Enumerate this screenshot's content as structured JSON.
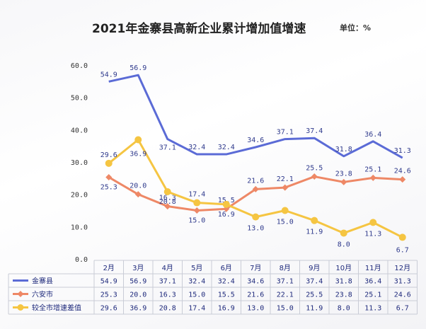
{
  "chart_data": {
    "type": "line",
    "title": "2021年金寨县高新企业累计增加值增速",
    "unit": "单位：%",
    "categories": [
      "2月",
      "3月",
      "4月",
      "5月",
      "6月",
      "7月",
      "8月",
      "9月",
      "10月",
      "11月",
      "12月"
    ],
    "y_ticks": [
      "0.0",
      "10.0",
      "20.0",
      "30.0",
      "40.0",
      "50.0",
      "60.0"
    ],
    "ylim": [
      0,
      60
    ],
    "grid": false,
    "legend": "data-table",
    "series": [
      {
        "name": "金寨县",
        "color": "#5b6bd6",
        "marker": "none",
        "values": [
          54.9,
          56.9,
          37.1,
          32.4,
          32.4,
          34.6,
          37.1,
          37.4,
          31.8,
          36.4,
          31.3
        ]
      },
      {
        "name": "六安市",
        "color": "#ee8866",
        "marker": "diamond",
        "values": [
          25.3,
          20.0,
          16.3,
          15.0,
          15.5,
          21.6,
          22.1,
          25.5,
          23.8,
          25.1,
          24.6
        ]
      },
      {
        "name": "较全市增速差值",
        "color": "#f5c542",
        "marker": "circle",
        "values": [
          29.6,
          36.9,
          20.8,
          17.4,
          16.9,
          13.0,
          15.0,
          11.9,
          8.0,
          11.3,
          6.7
        ]
      }
    ]
  }
}
